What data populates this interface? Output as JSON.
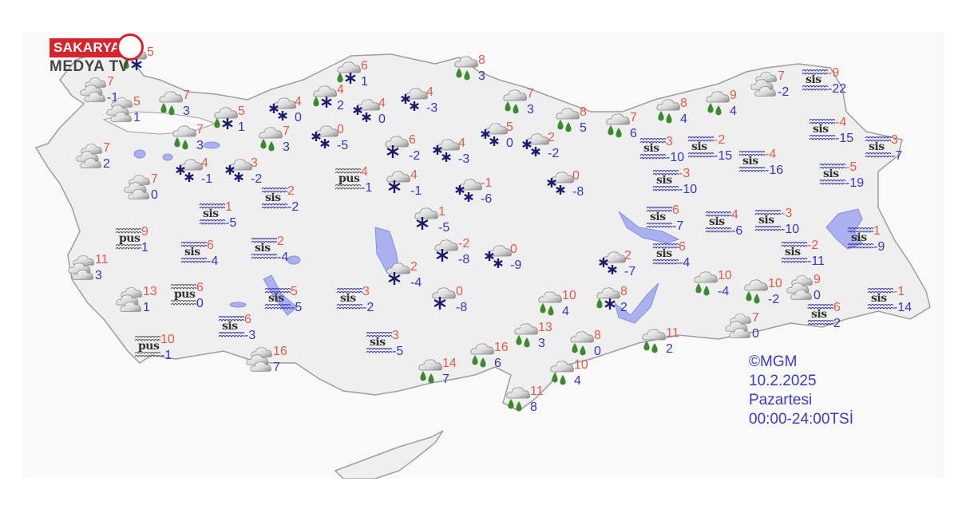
{
  "logo": {
    "line1": "SAKARYA",
    "line2": "MEDYA TV"
  },
  "credits": {
    "source": "©MGM",
    "date": "10.2.2025",
    "day": "Pazartesi",
    "period": "00:00-24:00TSİ"
  },
  "icon_labels": {
    "fog": "sis",
    "mist": "pus"
  },
  "colors": {
    "max_temp": "#e55a4b",
    "min_temp": "#3434c8",
    "land": "#efefef",
    "water": "#aab0f0",
    "rain_drop": "#3d8a2e",
    "snowflake": "#1a1a6e"
  },
  "stations": [
    {
      "icon": "cloudy",
      "max": "7",
      "min": "-1"
    },
    {
      "icon": "rain-snow",
      "max": "5",
      "min": ""
    },
    {
      "icon": "cloudy",
      "max": "5",
      "min": "1"
    },
    {
      "icon": "rain",
      "max": "7",
      "min": "3"
    },
    {
      "icon": "rain-snow",
      "max": "5",
      "min": "1"
    },
    {
      "icon": "rain",
      "max": "7",
      "min": "3"
    },
    {
      "icon": "rain",
      "max": "7",
      "min": "3"
    },
    {
      "icon": "snow",
      "max": "4",
      "min": "0"
    },
    {
      "icon": "rain-snow",
      "max": "4",
      "min": "2"
    },
    {
      "icon": "rain-snow",
      "max": "6",
      "min": "1"
    },
    {
      "icon": "snow",
      "max": "4",
      "min": "0"
    },
    {
      "icon": "snow",
      "max": "4",
      "min": "-3"
    },
    {
      "icon": "rain",
      "max": "8",
      "min": "3"
    },
    {
      "icon": "snow",
      "max": "0",
      "min": "-5"
    },
    {
      "icon": "snow-single",
      "max": "6",
      "min": "-2"
    },
    {
      "icon": "snow",
      "max": "4",
      "min": "-3"
    },
    {
      "icon": "rain",
      "max": "7",
      "min": "3"
    },
    {
      "icon": "snow",
      "max": "5",
      "min": "0"
    },
    {
      "icon": "rain",
      "max": "8",
      "min": "5"
    },
    {
      "icon": "snow",
      "max": "2",
      "min": "-2"
    },
    {
      "icon": "rain",
      "max": "7",
      "min": "6"
    },
    {
      "icon": "rain",
      "max": "8",
      "min": "4"
    },
    {
      "icon": "rain",
      "max": "9",
      "min": "4"
    },
    {
      "icon": "cloudy",
      "max": "7",
      "min": "-2"
    },
    {
      "icon": "fog",
      "max": "-9",
      "min": "-22"
    },
    {
      "icon": "fog",
      "max": "3",
      "min": "-10"
    },
    {
      "icon": "fog",
      "max": "-2",
      "min": "-15"
    },
    {
      "icon": "fog",
      "max": "-4",
      "min": "-16"
    },
    {
      "icon": "fog",
      "max": "-4",
      "min": "-15"
    },
    {
      "icon": "fog",
      "max": "3",
      "min": "-7"
    },
    {
      "icon": "fog",
      "max": "-5",
      "min": "-19"
    },
    {
      "icon": "fog",
      "max": "-3",
      "min": "-10"
    },
    {
      "icon": "fog",
      "max": "6",
      "min": "-7"
    },
    {
      "icon": "fog",
      "max": "4",
      "min": "-6"
    },
    {
      "icon": "fog",
      "max": "-3",
      "min": "-10"
    },
    {
      "icon": "fog",
      "max": "1",
      "min": "-9"
    },
    {
      "icon": "fog",
      "max": "-2",
      "min": "-11"
    },
    {
      "icon": "fog",
      "max": "6",
      "min": "-4"
    },
    {
      "icon": "snow",
      "max": "2",
      "min": "-7"
    },
    {
      "icon": "rain",
      "max": "10",
      "min": "-4"
    },
    {
      "icon": "rain",
      "max": "10",
      "min": "-2"
    },
    {
      "icon": "cloudy",
      "max": "9",
      "min": "0"
    },
    {
      "icon": "fog",
      "max": "-1",
      "min": "-14"
    },
    {
      "icon": "fog",
      "max": "6",
      "min": "2"
    },
    {
      "icon": "cloudy",
      "max": "7",
      "min": "0"
    },
    {
      "icon": "rain",
      "max": "11",
      "min": "2"
    },
    {
      "icon": "rain-snow",
      "max": "8",
      "min": "2"
    },
    {
      "icon": "rain",
      "max": "8",
      "min": "0"
    },
    {
      "icon": "rain",
      "max": "10",
      "min": "4"
    },
    {
      "icon": "rain",
      "max": "13",
      "min": "3"
    },
    {
      "icon": "rain",
      "max": "16",
      "min": "6"
    },
    {
      "icon": "rain",
      "max": "14",
      "min": "7"
    },
    {
      "icon": "rain",
      "max": "11",
      "min": "8"
    },
    {
      "icon": "rain",
      "max": "10",
      "min": "4"
    },
    {
      "icon": "snow-single",
      "max": "4",
      "min": "-1"
    },
    {
      "icon": "mist",
      "max": "4",
      "min": "-1"
    },
    {
      "icon": "snow",
      "max": "-1",
      "min": "-6"
    },
    {
      "icon": "snow",
      "max": "0",
      "min": "-8"
    },
    {
      "icon": "snow-single",
      "max": "1",
      "min": "-5"
    },
    {
      "icon": "snow-single",
      "max": "-2",
      "min": "-8"
    },
    {
      "icon": "snow",
      "max": "0",
      "min": "-9"
    },
    {
      "icon": "snow-single",
      "max": "2",
      "min": "-4"
    },
    {
      "icon": "snow-single",
      "max": "0",
      "min": "-8"
    },
    {
      "icon": "fog",
      "max": "3",
      "min": "-2"
    },
    {
      "icon": "fog",
      "max": "3",
      "min": "-5"
    },
    {
      "icon": "cloudy",
      "max": "7",
      "min": "2"
    },
    {
      "icon": "cloudy",
      "max": "7",
      "min": "0"
    },
    {
      "icon": "snow",
      "max": "4",
      "min": "-1"
    },
    {
      "icon": "snow",
      "max": "3",
      "min": "-2"
    },
    {
      "icon": "fog",
      "max": "2",
      "min": "-2"
    },
    {
      "icon": "fog",
      "max": "1",
      "min": "-5"
    },
    {
      "icon": "mist",
      "max": "9",
      "min": "1"
    },
    {
      "icon": "cloudy",
      "max": "11",
      "min": "3"
    },
    {
      "icon": "fog",
      "max": "6",
      "min": "-4"
    },
    {
      "icon": "fog",
      "max": "2",
      "min": "-4"
    },
    {
      "icon": "cloudy",
      "max": "13",
      "min": "1"
    },
    {
      "icon": "mist",
      "max": "6",
      "min": "0"
    },
    {
      "icon": "fog",
      "max": "5",
      "min": "-5"
    },
    {
      "icon": "fog",
      "max": "6",
      "min": "-3"
    },
    {
      "icon": "mist",
      "max": "10",
      "min": "-1"
    },
    {
      "icon": "cloudy",
      "max": "16",
      "min": "7"
    }
  ]
}
